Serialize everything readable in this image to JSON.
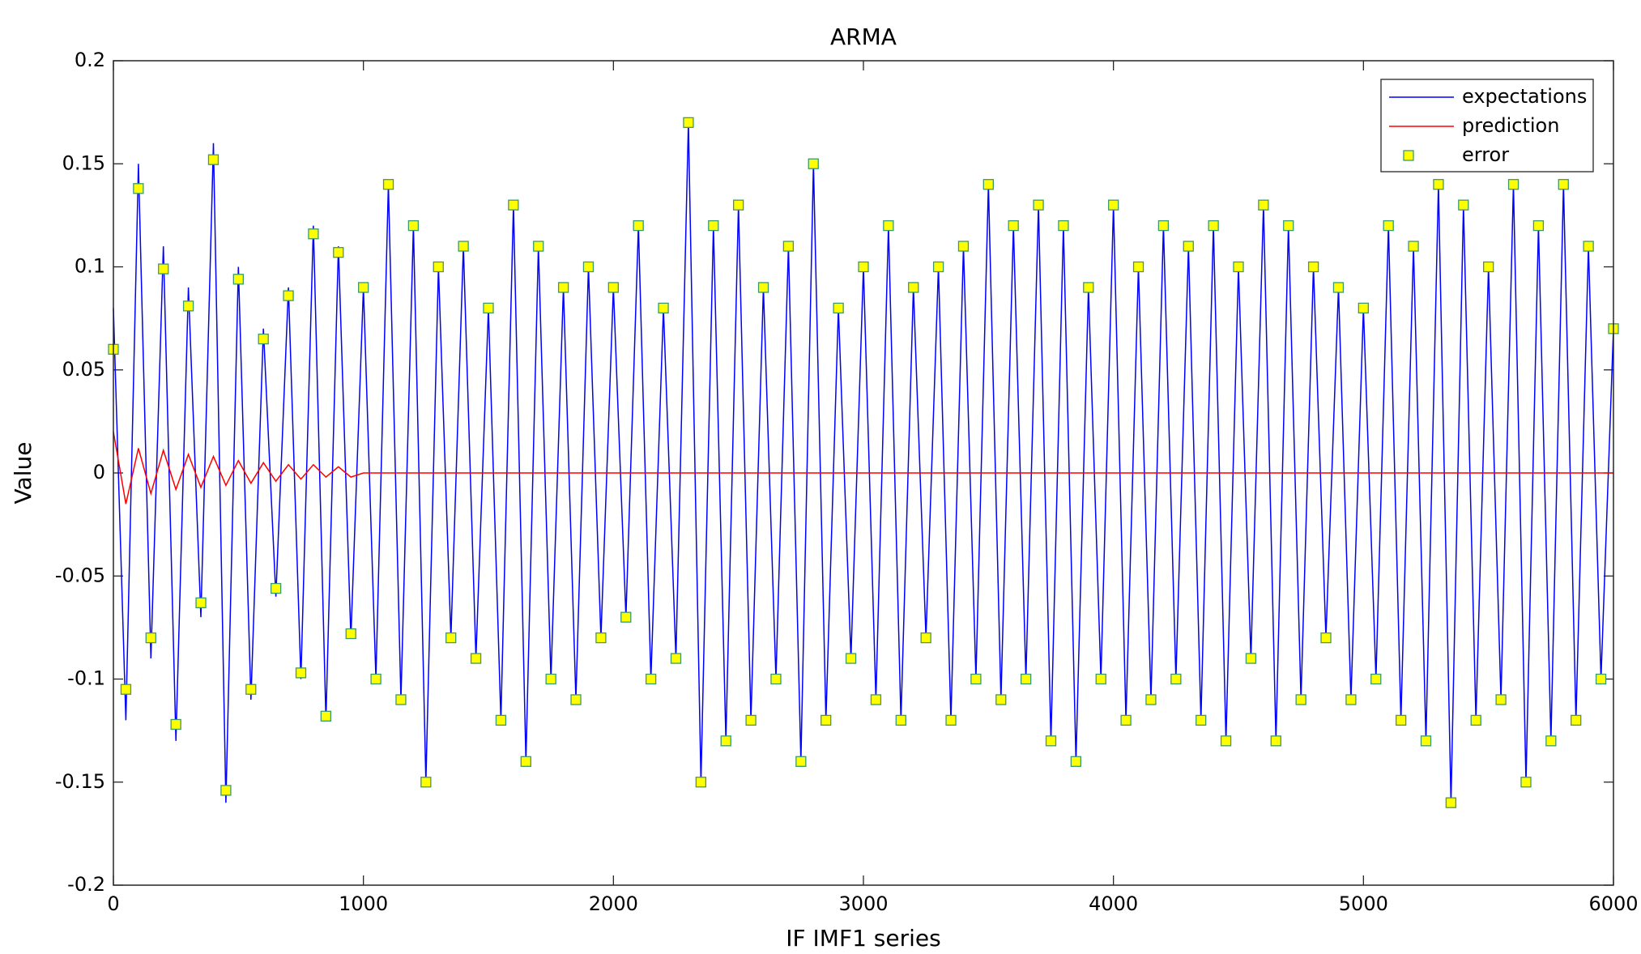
{
  "chart_data": {
    "type": "line",
    "title": "ARMA",
    "xlabel": "IF IMF1 series",
    "ylabel": "Value",
    "x": [
      0,
      50,
      100,
      150,
      200,
      250,
      300,
      350,
      400,
      450,
      500,
      550,
      600,
      650,
      700,
      750,
      800,
      850,
      900,
      950,
      1000,
      1050,
      1100,
      1150,
      1200,
      1250,
      1300,
      1350,
      1400,
      1450,
      1500,
      1550,
      1600,
      1650,
      1700,
      1750,
      1800,
      1850,
      1900,
      1950,
      2000,
      2050,
      2100,
      2150,
      2200,
      2250,
      2300,
      2350,
      2400,
      2450,
      2500,
      2550,
      2600,
      2650,
      2700,
      2750,
      2800,
      2850,
      2900,
      2950,
      3000,
      3050,
      3100,
      3150,
      3200,
      3250,
      3300,
      3350,
      3400,
      3450,
      3500,
      3550,
      3600,
      3650,
      3700,
      3750,
      3800,
      3850,
      3900,
      3950,
      4000,
      4050,
      4100,
      4150,
      4200,
      4250,
      4300,
      4350,
      4400,
      4450,
      4500,
      4550,
      4600,
      4650,
      4700,
      4750,
      4800,
      4850,
      4900,
      4950,
      5000,
      5050,
      5100,
      5150,
      5200,
      5250,
      5300,
      5350,
      5400,
      5450,
      5500,
      5550,
      5600,
      5650,
      5700,
      5750,
      5800,
      5850,
      5900,
      5950,
      6000
    ],
    "series": [
      {
        "name": "expectations",
        "color": "#0000ff",
        "style": "line",
        "values": [
          0.08,
          -0.12,
          0.15,
          -0.09,
          0.11,
          -0.13,
          0.09,
          -0.07,
          0.16,
          -0.16,
          0.1,
          -0.11,
          0.07,
          -0.06,
          0.09,
          -0.1,
          0.12,
          -0.12,
          0.11,
          -0.08,
          0.09,
          -0.1,
          0.14,
          -0.11,
          0.12,
          -0.15,
          0.1,
          -0.08,
          0.11,
          -0.09,
          0.08,
          -0.12,
          0.13,
          -0.14,
          0.11,
          -0.1,
          0.09,
          -0.11,
          0.1,
          -0.08,
          0.09,
          -0.07,
          0.12,
          -0.1,
          0.08,
          -0.09,
          0.17,
          -0.15,
          0.12,
          -0.13,
          0.13,
          -0.12,
          0.09,
          -0.1,
          0.11,
          -0.14,
          0.15,
          -0.12,
          0.08,
          -0.09,
          0.1,
          -0.11,
          0.12,
          -0.12,
          0.09,
          -0.08,
          0.1,
          -0.12,
          0.11,
          -0.1,
          0.14,
          -0.11,
          0.12,
          -0.1,
          0.13,
          -0.13,
          0.12,
          -0.14,
          0.09,
          -0.1,
          0.13,
          -0.12,
          0.1,
          -0.11,
          0.12,
          -0.1,
          0.11,
          -0.12,
          0.12,
          -0.13,
          0.1,
          -0.09,
          0.13,
          -0.13,
          0.12,
          -0.11,
          0.1,
          -0.08,
          0.09,
          -0.11,
          0.08,
          -0.1,
          0.12,
          -0.12,
          0.11,
          -0.13,
          0.14,
          -0.16,
          0.13,
          -0.12,
          0.1,
          -0.11,
          0.14,
          -0.15,
          0.12,
          -0.13,
          0.14,
          -0.12,
          0.11,
          -0.1,
          0.07
        ]
      },
      {
        "name": "prediction",
        "color": "#ff0000",
        "style": "line",
        "values": [
          0.02,
          -0.015,
          0.012,
          -0.01,
          0.011,
          -0.008,
          0.009,
          -0.007,
          0.008,
          -0.006,
          0.006,
          -0.005,
          0.005,
          -0.004,
          0.004,
          -0.003,
          0.004,
          -0.002,
          0.003,
          -0.002,
          0,
          0,
          0,
          0,
          0,
          0,
          0,
          0,
          0,
          0,
          0,
          0,
          0,
          0,
          0,
          0,
          0,
          0,
          0,
          0,
          0,
          0,
          0,
          0,
          0,
          0,
          0,
          0,
          0,
          0,
          0,
          0,
          0,
          0,
          0,
          0,
          0,
          0,
          0,
          0,
          0,
          0,
          0,
          0,
          0,
          0,
          0,
          0,
          0,
          0,
          0,
          0,
          0,
          0,
          0,
          0,
          0,
          0,
          0,
          0,
          0,
          0,
          0,
          0,
          0,
          0,
          0,
          0,
          0,
          0,
          0,
          0,
          0,
          0,
          0,
          0,
          0,
          0,
          0,
          0,
          0,
          0,
          0,
          0,
          0,
          0,
          0,
          0,
          0,
          0,
          0,
          0,
          0,
          0,
          0,
          0,
          0,
          0,
          0,
          0,
          0
        ]
      },
      {
        "name": "error",
        "color": "#ffff00",
        "edgecolor": "#3a9a6a",
        "style": "marker",
        "values": [
          0.06,
          -0.105,
          0.138,
          -0.08,
          0.099,
          -0.122,
          0.081,
          -0.063,
          0.152,
          -0.154,
          0.094,
          -0.105,
          0.065,
          -0.056,
          0.086,
          -0.097,
          0.116,
          -0.118,
          0.107,
          -0.078,
          0.09,
          -0.1,
          0.14,
          -0.11,
          0.12,
          -0.15,
          0.1,
          -0.08,
          0.11,
          -0.09,
          0.08,
          -0.12,
          0.13,
          -0.14,
          0.11,
          -0.1,
          0.09,
          -0.11,
          0.1,
          -0.08,
          0.09,
          -0.07,
          0.12,
          -0.1,
          0.08,
          -0.09,
          0.17,
          -0.15,
          0.12,
          -0.13,
          0.13,
          -0.12,
          0.09,
          -0.1,
          0.11,
          -0.14,
          0.15,
          -0.12,
          0.08,
          -0.09,
          0.1,
          -0.11,
          0.12,
          -0.12,
          0.09,
          -0.08,
          0.1,
          -0.12,
          0.11,
          -0.1,
          0.14,
          -0.11,
          0.12,
          -0.1,
          0.13,
          -0.13,
          0.12,
          -0.14,
          0.09,
          -0.1,
          0.13,
          -0.12,
          0.1,
          -0.11,
          0.12,
          -0.1,
          0.11,
          -0.12,
          0.12,
          -0.13,
          0.1,
          -0.09,
          0.13,
          -0.13,
          0.12,
          -0.11,
          0.1,
          -0.08,
          0.09,
          -0.11,
          0.08,
          -0.1,
          0.12,
          -0.12,
          0.11,
          -0.13,
          0.14,
          -0.16,
          0.13,
          -0.12,
          0.1,
          -0.11,
          0.14,
          -0.15,
          0.12,
          -0.13,
          0.14,
          -0.12,
          0.11,
          -0.1,
          0.07
        ]
      }
    ],
    "xlim": [
      0,
      6000
    ],
    "xticks": [
      0,
      1000,
      2000,
      3000,
      4000,
      5000,
      6000
    ],
    "ylim": [
      -0.2,
      0.2
    ],
    "yticks": [
      -0.2,
      -0.15,
      -0.1,
      -0.05,
      0,
      0.05,
      0.1,
      0.15,
      0.2
    ],
    "grid": false,
    "legend": "upper right"
  }
}
